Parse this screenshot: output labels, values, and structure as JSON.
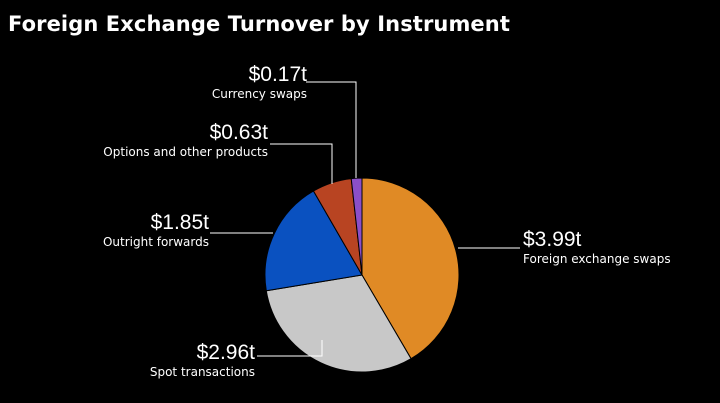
{
  "chart_data": {
    "type": "pie",
    "title": "Foreign Exchange Turnover by Instrument",
    "slices": [
      {
        "label": "Foreign exchange swaps",
        "value": 3.99,
        "value_label": "$3.99t",
        "color": "#E08A25"
      },
      {
        "label": "Spot transactions",
        "value": 2.96,
        "value_label": "$2.96t",
        "color": "#C8C8C8"
      },
      {
        "label": "Outright forwards",
        "value": 1.85,
        "value_label": "$1.85t",
        "color": "#0A51C0"
      },
      {
        "label": "Options and other products",
        "value": 0.63,
        "value_label": "$0.63t",
        "color": "#B84422"
      },
      {
        "label": "Currency swaps",
        "value": 0.17,
        "value_label": "$0.17t",
        "color": "#8B4FC8"
      }
    ],
    "start": "12 o'clock",
    "direction": "clockwise"
  }
}
